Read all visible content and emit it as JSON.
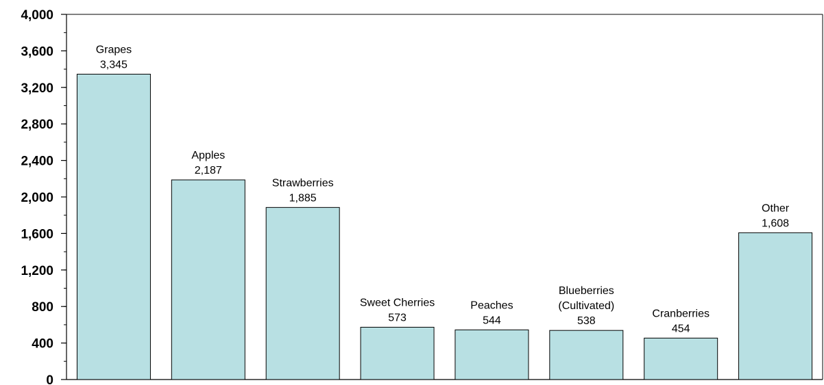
{
  "chart_data": {
    "type": "bar",
    "categories": [
      "Grapes",
      "Apples",
      "Strawberries",
      "Sweet Cherries",
      "Peaches",
      "Blueberries (Cultivated)",
      "Cranberries",
      "Other"
    ],
    "label_lines": [
      [
        "Grapes"
      ],
      [
        "Apples"
      ],
      [
        "Strawberries"
      ],
      [
        "Sweet Cherries"
      ],
      [
        "Peaches"
      ],
      [
        "Blueberries",
        "(Cultivated)"
      ],
      [
        "Cranberries"
      ],
      [
        "Other"
      ]
    ],
    "values": [
      3345,
      2187,
      1885,
      573,
      544,
      538,
      454,
      1608
    ],
    "value_labels": [
      "3,345",
      "2,187",
      "1,885",
      "573",
      "544",
      "538",
      "454",
      "1,608"
    ],
    "yticks": [
      0,
      400,
      800,
      1200,
      1600,
      2000,
      2400,
      2800,
      3200,
      3600,
      4000
    ],
    "ytick_labels": [
      "0",
      "400",
      "800",
      "1,200",
      "1,600",
      "2,000",
      "2,400",
      "2,800",
      "3,200",
      "3,600",
      "4,000"
    ],
    "ylim": [
      0,
      4000
    ],
    "minor_tick_step": 200,
    "title": "",
    "xlabel": "",
    "ylabel": "",
    "grid": false,
    "legend": "none",
    "bar_color": "#b8e0e3",
    "bar_edge_color": "#000000"
  }
}
